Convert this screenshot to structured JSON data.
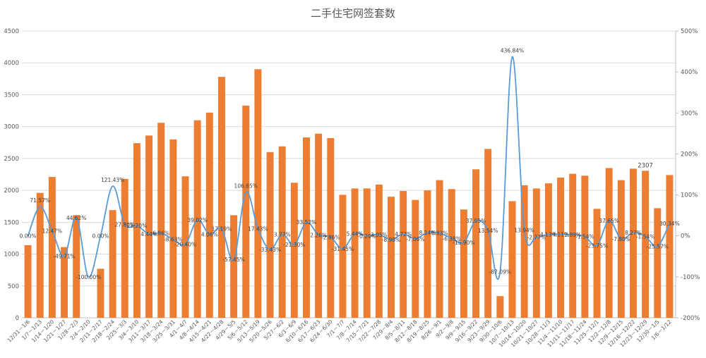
{
  "chart_data": {
    "type": "bar",
    "title": "二手住宅网签套数",
    "categories": [
      "12/31－1/6",
      "1/7－1/13",
      "1/14－1/20",
      "1/21－1/27",
      "1/28－2/3",
      "2/4－2/10",
      "2/11－2/17",
      "2/18－2/24",
      "2/25－3/3",
      "3/4－3/10",
      "3/11－3/17",
      "3/18－3/24",
      "3/25－3/31",
      "4/1－4/7",
      "4/8－4/14",
      "4/15－4/21",
      "4/22－4/28",
      "4/29－5/5",
      "5/6－5/12",
      "5/13－5/19",
      "5/20－5/26",
      "5/27－6/2",
      "6/3－6/9",
      "6/10－6/16",
      "6/17－6/23",
      "6/24－6/30",
      "7/1－7/7",
      "7/8－7/14",
      "7/15－7/21",
      "7/22－7/28",
      "7/29－8/4",
      "8/5－8/11",
      "8/12－8/18",
      "8/19－8/25",
      "8/26－9/1",
      "9/2－9/8",
      "9/9－9/15",
      "9/16－9/22",
      "9/23－9/29",
      "9/30－10/6",
      "10/7－10/13",
      "10/14－10/20",
      "10/21－10/27",
      "10/28－11/3",
      "11/4－11/10",
      "11/11－11/17",
      "11/18－11/24",
      "11/25－12/1",
      "12/2－12/8",
      "12/9－12/15",
      "12/16－12/22",
      "12/23－12/29",
      "12/30－1/5",
      "1/6－1/12"
    ],
    "series": [
      {
        "type": "bar",
        "axis": "left",
        "color": "#ed7d31",
        "values": [
          1140,
          1960,
          2210,
          1110,
          1610,
          0,
          770,
          1690,
          2180,
          2740,
          2860,
          3060,
          2800,
          2220,
          3100,
          3220,
          3780,
          1610,
          3330,
          3900,
          2600,
          2690,
          2120,
          2830,
          2890,
          2820,
          1930,
          2030,
          2030,
          2090,
          1900,
          1990,
          1850,
          2000,
          2160,
          2020,
          1700,
          2330,
          2650,
          340,
          1830,
          2080,
          2030,
          2110,
          2200,
          2260,
          2230,
          1710,
          2350,
          2160,
          2340,
          2307,
          1720,
          2240
        ],
        "labels": {
          "51": "2307"
        }
      },
      {
        "type": "line",
        "axis": "right",
        "color": "#5b9bd5",
        "values": [
          0.0,
          71.57,
          12.47,
          -49.71,
          44.62,
          -100.0,
          0.0,
          121.43,
          27.8,
          25.2,
          4.44,
          6.86,
          -8.63,
          -20.4,
          39.02,
          4.06,
          17.19,
          -57.45,
          106.65,
          17.43,
          -33.43,
          3.77,
          -21.3,
          33.52,
          2.26,
          -2.86,
          -31.45,
          5.44,
          -0.2,
          3.05,
          -8.98,
          4.72,
          -7.06,
          8.14,
          6.83,
          -6.38,
          -15.9,
          37.05,
          13.54,
          -87.09,
          436.84,
          13.94,
          -2.77,
          4.13,
          4.11,
          2.89,
          -1.54,
          -23.75,
          37.65,
          -7.8,
          8.27,
          -1.54,
          -25.57,
          30.34
        ],
        "labels": [
          "0.00%",
          "71.57%",
          "12.47%",
          "-49.71%",
          "44.62%",
          "-100.00%",
          "0.00%",
          "121.43%",
          "27.80%",
          "25.20%",
          "4.44%",
          "6.86%",
          "-8.63%",
          "-20.40%",
          "39.02%",
          "4.06%",
          "17.19%",
          "-57.45%",
          "106.65%",
          "17.43%",
          "-33.43%",
          "3.77%",
          "-21.30%",
          "33.52%",
          "2.26%",
          "-2.86%",
          "-31.45%",
          "5.44%",
          "-0.20%",
          "3.05%",
          "-8.98%",
          "4.72%",
          "-7.06%",
          "8.14%",
          "6.83%",
          "-6.38%",
          "-15.90%",
          "37.05%",
          "13.54%",
          "-87.09%",
          "436.84%",
          "13.94%",
          "-2.77%",
          "4.13%",
          "4.11%",
          "2.89%",
          "-1.54%",
          "-23.75%",
          "37.65%",
          "-7.80%",
          "8.27%",
          "-1.54%",
          "-25.57%",
          "30.34%"
        ]
      }
    ],
    "y_left": {
      "min": 0,
      "max": 4500,
      "step": 500,
      "ticks": [
        "0",
        "500",
        "1000",
        "1500",
        "2000",
        "2500",
        "3000",
        "3500",
        "4000",
        "4500"
      ]
    },
    "y_right": {
      "min": -200,
      "max": 500,
      "step": 100,
      "ticks": [
        "-200%",
        "-100%",
        "0%",
        "100%",
        "200%",
        "300%",
        "400%",
        "500%"
      ]
    },
    "grid": true,
    "legend": "none"
  }
}
